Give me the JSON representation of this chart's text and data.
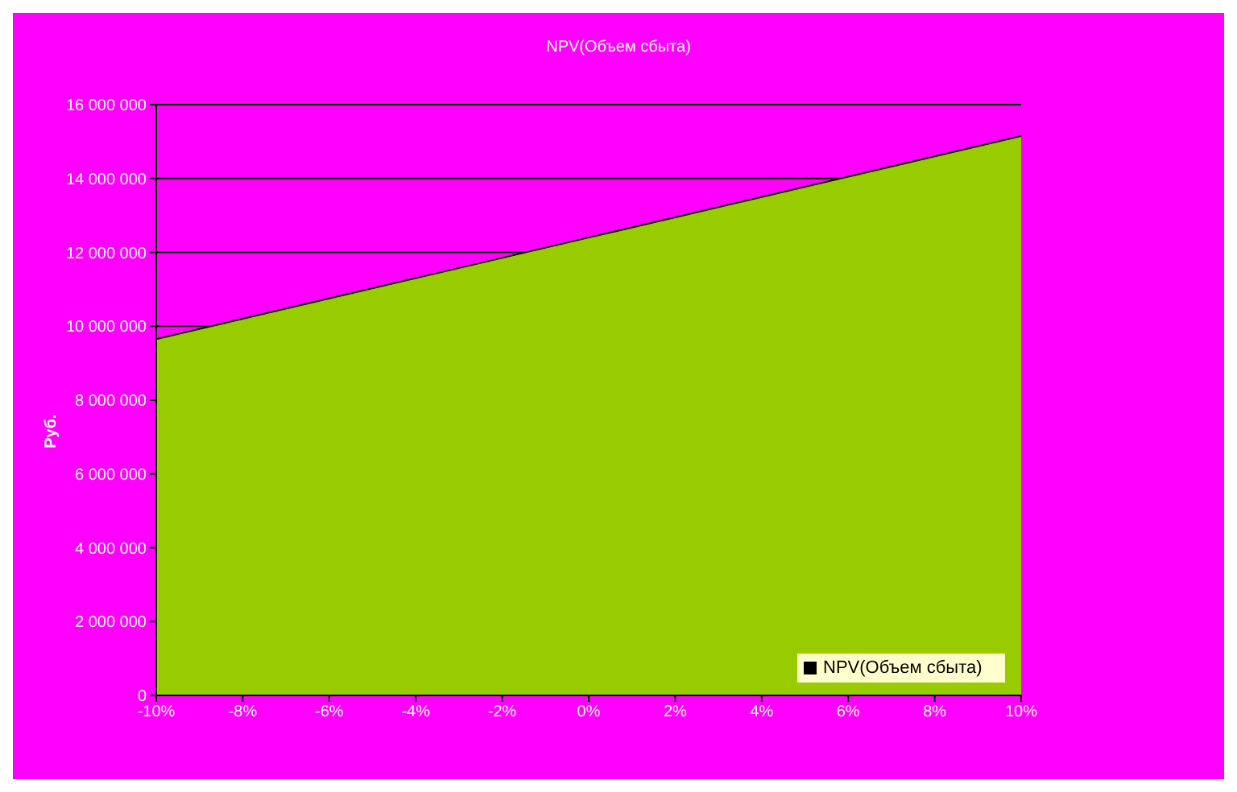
{
  "chart_data": {
    "type": "area",
    "title": "NPV(Объем сбыта)",
    "ylabel": "Руб.",
    "x": [
      -10,
      -8,
      -6,
      -4,
      -2,
      0,
      2,
      4,
      6,
      8,
      10
    ],
    "series": [
      {
        "name": "NPV(Объем сбыта)",
        "color": "#99cc00",
        "values": [
          9650000,
          10200000,
          10750000,
          11300000,
          11850000,
          12400000,
          12950000,
          13500000,
          14050000,
          14600000,
          15150000
        ]
      }
    ],
    "xlim": [
      -10,
      10
    ],
    "xticks": [
      {
        "value": -10,
        "label": "-10%"
      },
      {
        "value": -8,
        "label": "-8%"
      },
      {
        "value": -6,
        "label": "-6%"
      },
      {
        "value": -4,
        "label": "-4%"
      },
      {
        "value": -2,
        "label": "-2%"
      },
      {
        "value": 0,
        "label": "0%"
      },
      {
        "value": 2,
        "label": "2%"
      },
      {
        "value": 4,
        "label": "4%"
      },
      {
        "value": 6,
        "label": "6%"
      },
      {
        "value": 8,
        "label": "8%"
      },
      {
        "value": 10,
        "label": "10%"
      }
    ],
    "ylim": [
      0,
      16000000
    ],
    "yticks": [
      0,
      {
        "value": 2000000,
        "label": "2 000 000"
      },
      {
        "value": 4000000,
        "label": "4 000 000"
      },
      {
        "value": 6000000,
        "label": "6 000 000"
      },
      {
        "value": 8000000,
        "label": "8 000 000"
      },
      {
        "value": 10000000,
        "label": "10 000 000"
      },
      {
        "value": 12000000,
        "label": "12 000 000"
      },
      {
        "value": 14000000,
        "label": "14 000 000"
      },
      {
        "value": 16000000,
        "label": "16 000 000"
      }
    ],
    "grid": "y",
    "legend": "bottom right"
  }
}
